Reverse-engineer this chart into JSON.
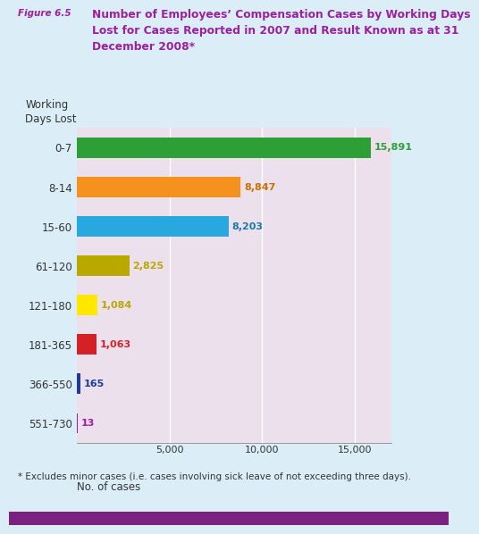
{
  "categories": [
    "0-7",
    "8-14",
    "15-60",
    "61-120",
    "121-180",
    "181-365",
    "366-550",
    "551-730"
  ],
  "values": [
    15891,
    8847,
    8203,
    2825,
    1084,
    1063,
    165,
    13
  ],
  "bar_colors": [
    "#2e9e37",
    "#f5921e",
    "#29a8e0",
    "#b8a800",
    "#ffe800",
    "#d42027",
    "#1f3b96",
    "#9b1fa0"
  ],
  "label_colors": [
    "#2e9e37",
    "#c87000",
    "#1a7aaa",
    "#b8a800",
    "#b8a800",
    "#d42027",
    "#1f3b96",
    "#9b1fa0"
  ],
  "value_labels": [
    "15,891",
    "8,847",
    "8,203",
    "2,825",
    "1,084",
    "1,063",
    "165",
    "13"
  ],
  "xlabel": "No. of cases",
  "working_days_label": "Working\nDays Lost",
  "xlim": [
    0,
    17000
  ],
  "xticks": [
    0,
    5000,
    10000,
    15000
  ],
  "xtick_labels": [
    "",
    "5,000",
    "10,000",
    "15,000"
  ],
  "figure_label": "Figure 6.5",
  "title_line1": "Number of Employees’ Compensation Cases by Working Days",
  "title_line2": "Lost for Cases Reported in 2007 and Result Known as at 31",
  "title_line3": "December 2008*",
  "footnote": "* Excludes minor cases (i.e. cases involving sick leave of not exceeding three days).",
  "title_color": "#9b1fa0",
  "figure_label_color": "#9b1fa0",
  "chart_bg": "#ede0ed",
  "outer_bg_top": "#dbeef7",
  "purple_bar_color": "#7b2182",
  "grid_color": "#ffffff",
  "footnote_area_bg": "#dbeef7"
}
